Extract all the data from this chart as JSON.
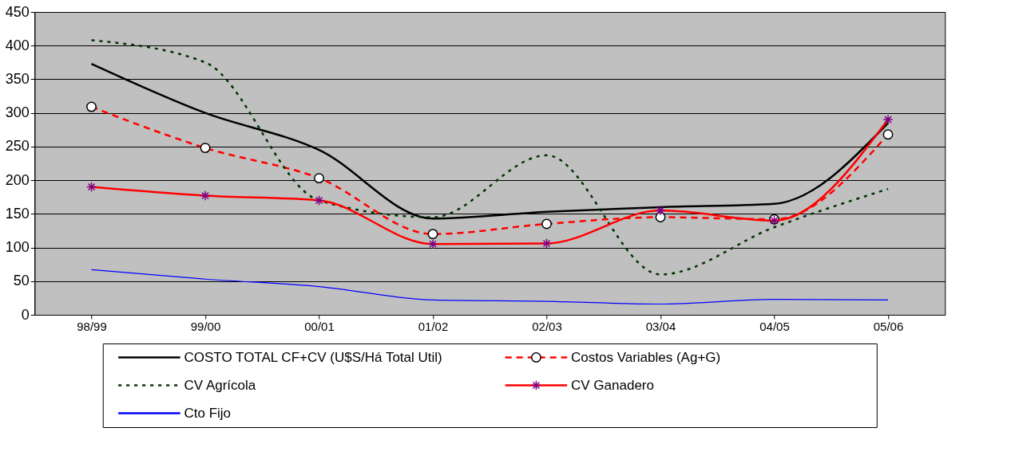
{
  "chart_data": {
    "type": "line",
    "categories": [
      "98/99",
      "99/00",
      "00/01",
      "01/02",
      "02/03",
      "03/04",
      "04/05",
      "05/06"
    ],
    "series": [
      {
        "name": "COSTO TOTAL CF+CV (U$S/Há Total Util)",
        "color": "#000000",
        "line_style": "solid",
        "marker": "none",
        "values": [
          373,
          300,
          245,
          143,
          153,
          160,
          165,
          285
        ]
      },
      {
        "name": "Costos Variables (Ag+G)",
        "color": "#ff0000",
        "line_style": "dashed",
        "marker": "circle",
        "values": [
          309,
          248,
          203,
          120,
          135,
          145,
          142,
          268
        ]
      },
      {
        "name": "CV Agrícola",
        "color": "#003300",
        "line_style": "dotted",
        "marker": "none",
        "values": [
          408,
          375,
          170,
          145,
          237,
          60,
          130,
          187
        ]
      },
      {
        "name": "CV Ganadero",
        "color": "#ff0000",
        "line_style": "solid",
        "marker": "cross",
        "values": [
          190,
          177,
          170,
          105,
          106,
          155,
          140,
          290
        ]
      },
      {
        "name": "Cto Fijo",
        "color": "#0000ff",
        "line_style": "solid",
        "marker": "none",
        "values": [
          67,
          53,
          42,
          22,
          20,
          16,
          23,
          22
        ]
      }
    ],
    "ylim": [
      0,
      450
    ],
    "yticks": [
      0,
      50,
      100,
      150,
      200,
      250,
      300,
      350,
      400,
      450
    ],
    "grid": "y",
    "legend": "bottom"
  }
}
